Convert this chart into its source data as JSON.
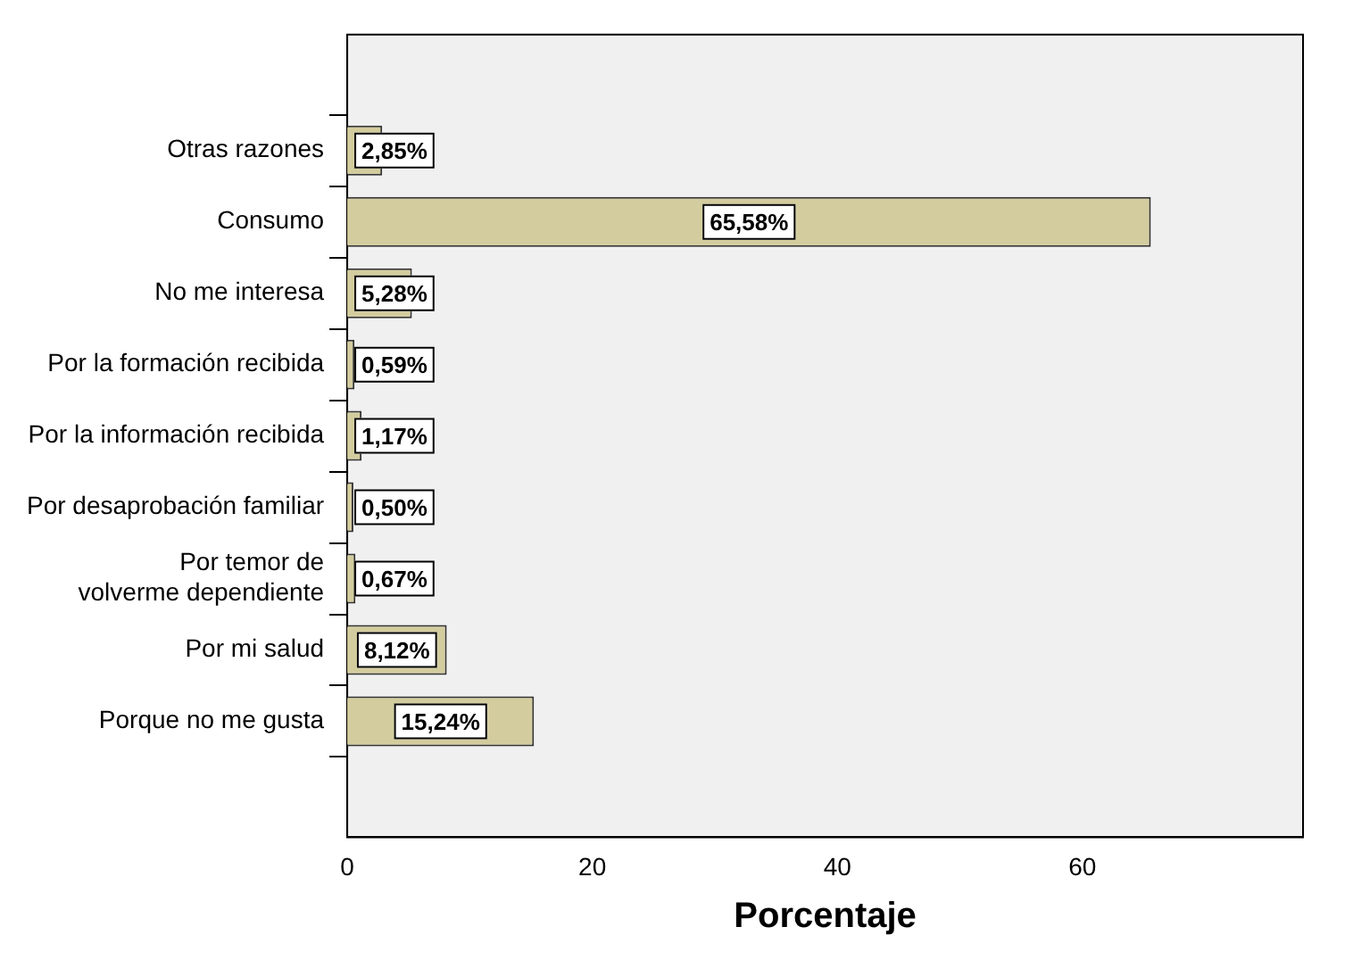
{
  "chart_data": {
    "type": "bar",
    "orientation": "horizontal",
    "xlabel": "Porcentaje",
    "categories": [
      "Otras razones",
      "Consumo",
      "No me interesa",
      "Por la formación recibida",
      "Por la información recibida",
      "Por desaprobación familiar",
      "Por temor de volverme dependiente",
      "Por mi salud",
      "Porque no me gusta"
    ],
    "values": [
      2.85,
      65.58,
      5.28,
      0.59,
      1.17,
      0.5,
      0.67,
      8.12,
      15.24
    ],
    "value_labels": [
      "2,85%",
      "65,58%",
      "5,28%",
      "0,59%",
      "1,17%",
      "0,50%",
      "0,67%",
      "8,12%",
      "15,24%"
    ],
    "color": "#d3cc9e",
    "xlim": [
      0,
      78
    ],
    "xticks": [
      0,
      20,
      40,
      60
    ],
    "grid": false,
    "legend": false
  }
}
